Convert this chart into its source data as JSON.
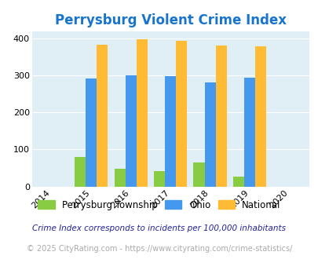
{
  "title": "Perrysburg Violent Crime Index",
  "title_color": "#1874cd",
  "years": [
    2014,
    2015,
    2016,
    2017,
    2018,
    2019,
    2020
  ],
  "bar_years": [
    2015,
    2016,
    2017,
    2018,
    2019
  ],
  "perrysburg": [
    79,
    49,
    41,
    64,
    27
  ],
  "ohio": [
    291,
    301,
    299,
    281,
    294
  ],
  "national": [
    384,
    399,
    394,
    381,
    379
  ],
  "color_perrysburg": "#88cc44",
  "color_ohio": "#4499ee",
  "color_national": "#ffbb33",
  "bg_color": "#e0eef5",
  "xlim": [
    2013.5,
    2020.5
  ],
  "ylim": [
    0,
    420
  ],
  "yticks": [
    0,
    100,
    200,
    300,
    400
  ],
  "legend_labels": [
    "Perrysburg Township",
    "Ohio",
    "National"
  ],
  "footnote1": "Crime Index corresponds to incidents per 100,000 inhabitants",
  "footnote2": "© 2025 CityRating.com - https://www.cityrating.com/crime-statistics/",
  "bar_width": 0.28
}
